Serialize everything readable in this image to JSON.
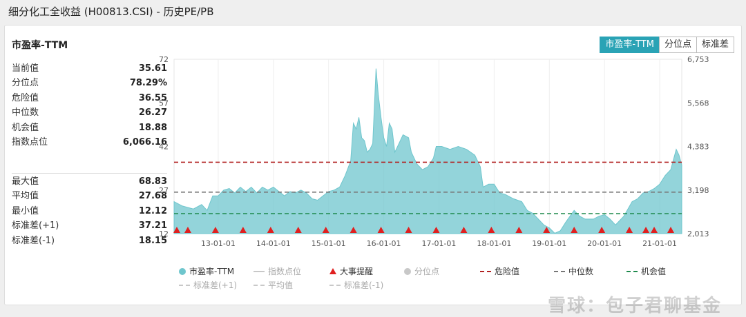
{
  "page_title": "细分化工全收益 (H00813.CSI) - 历史PE/PB",
  "card_title": "市盈率-TTM",
  "tabs": [
    {
      "label": "市盈率-TTM",
      "active": true
    },
    {
      "label": "分位点",
      "active": false
    },
    {
      "label": "标准差",
      "active": false
    }
  ],
  "stats_top": [
    {
      "label": "当前值",
      "value": "35.61"
    },
    {
      "label": "分位点",
      "value": "78.29%"
    },
    {
      "label": "危险值",
      "value": "36.55"
    },
    {
      "label": "中位数",
      "value": "26.27"
    },
    {
      "label": "机会值",
      "value": "18.88"
    },
    {
      "label": "指数点位",
      "value": "6,066.16"
    }
  ],
  "stats_bottom": [
    {
      "label": "最大值",
      "value": "68.83"
    },
    {
      "label": "平均值",
      "value": "27.68"
    },
    {
      "label": "最小值",
      "value": "12.12"
    },
    {
      "label": "标准差(+1)",
      "value": "37.21"
    },
    {
      "label": "标准差(-1)",
      "value": "18.15"
    }
  ],
  "legend": [
    {
      "label": "市盈率-TTM",
      "symbol": "dot",
      "color": "#6fc6cd",
      "faded": false
    },
    {
      "label": "指数点位",
      "symbol": "line",
      "color": "#c8c8c8",
      "faded": true
    },
    {
      "label": "大事提醒",
      "symbol": "triangle",
      "color": "#e02020",
      "faded": false
    },
    {
      "label": "分位点",
      "symbol": "dot",
      "color": "#c8c8c8",
      "faded": true
    },
    {
      "label": "危险值",
      "symbol": "dash",
      "color": "#b22222",
      "faded": false
    },
    {
      "label": "中位数",
      "symbol": "dash",
      "color": "#777777",
      "faded": false
    },
    {
      "label": "机会值",
      "symbol": "dash",
      "color": "#1e8a4c",
      "faded": false
    },
    {
      "label": "标准差(+1)",
      "symbol": "dash",
      "color": "#c8c8c8",
      "faded": true
    },
    {
      "label": "平均值",
      "symbol": "dash",
      "color": "#c8c8c8",
      "faded": true
    },
    {
      "label": "标准差(-1)",
      "symbol": "dash",
      "color": "#c8c8c8",
      "faded": true
    }
  ],
  "watermark": "雪球：包子君聊基金",
  "chart_data": {
    "type": "area",
    "x_tick_labels": [
      "13-01-01",
      "14-01-01",
      "15-01-01",
      "16-01-01",
      "17-01-01",
      "18-01-01",
      "19-01-01",
      "20-01-01",
      "21-01-01"
    ],
    "y_left_ticks": [
      12,
      27,
      42,
      57,
      72
    ],
    "y_right_ticks": [
      "2,013",
      "3,198",
      "4,383",
      "5,568",
      "6,753"
    ],
    "ylim": [
      12,
      72
    ],
    "x_start": 2012.2,
    "x_end": 2021.4,
    "series": [
      {
        "name": "市盈率-TTM",
        "color": "#6fc6cd",
        "points": [
          [
            2012.2,
            23
          ],
          [
            2012.35,
            21.5
          ],
          [
            2012.55,
            20.5
          ],
          [
            2012.7,
            22
          ],
          [
            2012.8,
            20
          ],
          [
            2012.9,
            25
          ],
          [
            2013.0,
            25
          ],
          [
            2013.1,
            27
          ],
          [
            2013.2,
            27.5
          ],
          [
            2013.3,
            26
          ],
          [
            2013.4,
            28
          ],
          [
            2013.5,
            26.5
          ],
          [
            2013.6,
            28
          ],
          [
            2013.7,
            26
          ],
          [
            2013.8,
            28
          ],
          [
            2013.9,
            27
          ],
          [
            2014.0,
            28
          ],
          [
            2014.1,
            26.5
          ],
          [
            2014.2,
            25
          ],
          [
            2014.3,
            26.5
          ],
          [
            2014.4,
            26
          ],
          [
            2014.5,
            27
          ],
          [
            2014.6,
            26
          ],
          [
            2014.7,
            24
          ],
          [
            2014.8,
            23.5
          ],
          [
            2014.9,
            25
          ],
          [
            2015.0,
            26.5
          ],
          [
            2015.1,
            27
          ],
          [
            2015.2,
            28
          ],
          [
            2015.3,
            32
          ],
          [
            2015.4,
            37
          ],
          [
            2015.45,
            50
          ],
          [
            2015.5,
            48
          ],
          [
            2015.55,
            52
          ],
          [
            2015.6,
            45
          ],
          [
            2015.65,
            44
          ],
          [
            2015.7,
            40
          ],
          [
            2015.75,
            41
          ],
          [
            2015.8,
            43
          ],
          [
            2015.84,
            60
          ],
          [
            2015.86,
            68.8
          ],
          [
            2015.9,
            60
          ],
          [
            2015.95,
            52
          ],
          [
            2016.0,
            45
          ],
          [
            2016.05,
            42
          ],
          [
            2016.1,
            50
          ],
          [
            2016.15,
            48
          ],
          [
            2016.2,
            40
          ],
          [
            2016.25,
            42
          ],
          [
            2016.35,
            46
          ],
          [
            2016.45,
            45
          ],
          [
            2016.5,
            40
          ],
          [
            2016.6,
            36
          ],
          [
            2016.7,
            34
          ],
          [
            2016.8,
            35
          ],
          [
            2016.9,
            38
          ],
          [
            2016.95,
            42
          ],
          [
            2017.05,
            42
          ],
          [
            2017.2,
            41
          ],
          [
            2017.35,
            42
          ],
          [
            2017.5,
            41
          ],
          [
            2017.65,
            39
          ],
          [
            2017.75,
            35
          ],
          [
            2017.8,
            28
          ],
          [
            2017.9,
            29
          ],
          [
            2018.0,
            29
          ],
          [
            2018.1,
            26
          ],
          [
            2018.2,
            25.5
          ],
          [
            2018.35,
            24
          ],
          [
            2018.5,
            23
          ],
          [
            2018.6,
            20
          ],
          [
            2018.7,
            19
          ],
          [
            2018.8,
            17
          ],
          [
            2018.9,
            15
          ],
          [
            2019.0,
            14
          ],
          [
            2019.1,
            12.12
          ],
          [
            2019.2,
            13
          ],
          [
            2019.3,
            16
          ],
          [
            2019.45,
            20
          ],
          [
            2019.55,
            18
          ],
          [
            2019.65,
            17
          ],
          [
            2019.8,
            17
          ],
          [
            2019.9,
            18
          ],
          [
            2020.0,
            18.5
          ],
          [
            2020.1,
            17
          ],
          [
            2020.2,
            15
          ],
          [
            2020.35,
            18
          ],
          [
            2020.5,
            23
          ],
          [
            2020.6,
            24
          ],
          [
            2020.7,
            26
          ],
          [
            2020.8,
            26.5
          ],
          [
            2020.9,
            27.5
          ],
          [
            2021.0,
            29
          ],
          [
            2021.1,
            32
          ],
          [
            2021.2,
            34
          ],
          [
            2021.3,
            41
          ],
          [
            2021.35,
            39
          ],
          [
            2021.4,
            35.61
          ]
        ]
      }
    ],
    "reference_lines": [
      {
        "name": "危险值",
        "value": 36.55,
        "color": "#b22222"
      },
      {
        "name": "中位数",
        "value": 26.27,
        "color": "#777777"
      },
      {
        "name": "机会值",
        "value": 18.88,
        "color": "#1e8a4c"
      }
    ],
    "event_markers": [
      2012.25,
      2012.45,
      2012.95,
      2013.45,
      2013.95,
      2014.45,
      2014.95,
      2015.45,
      2015.95,
      2016.45,
      2016.95,
      2017.45,
      2017.95,
      2018.45,
      2018.95,
      2019.45,
      2019.95,
      2020.45,
      2020.75,
      2020.9,
      2021.2
    ],
    "grid": "vertical"
  }
}
